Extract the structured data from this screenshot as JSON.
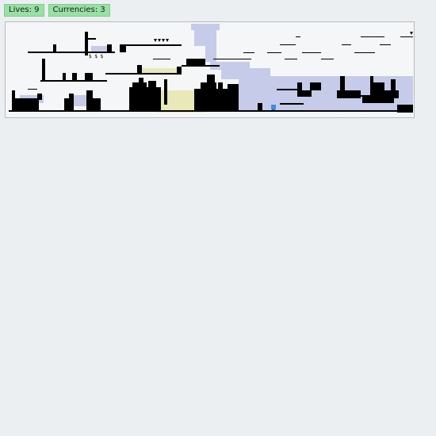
{
  "hud": {
    "lives_label": "Lives: 9",
    "currencies_label": "Currencies: 3"
  },
  "level": {
    "currency_markers": [
      "$ $ $",
      "$"
    ],
    "colors": {
      "background": "#f5f6f7",
      "solid": "#000000",
      "water": "#c5cbe9",
      "sand": "#e9e8b8",
      "player": "#3b8fe6"
    },
    "icons": {
      "player": "player-icon",
      "spikes": "spike-icon",
      "goal": "goal-flag-icon"
    }
  }
}
